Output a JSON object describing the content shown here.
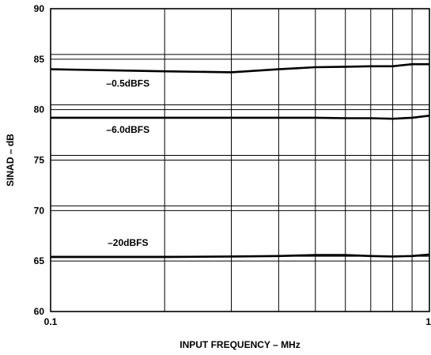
{
  "chart_data": {
    "type": "line",
    "xlabel": "INPUT FREQUENCY – MHz",
    "ylabel": "SINAD – dB",
    "x_scale": "log",
    "xlim": [
      0.1,
      1
    ],
    "ylim": [
      60,
      90
    ],
    "x_ticks": [
      {
        "value": 0.1,
        "label": "0.1"
      },
      {
        "value": 1,
        "label": "1"
      }
    ],
    "x_grid": [
      0.2,
      0.3,
      0.4,
      0.5,
      0.6,
      0.7,
      0.8,
      0.9
    ],
    "y_ticks": [
      60,
      65,
      70,
      75,
      80,
      85,
      90
    ],
    "grid": true,
    "series": [
      {
        "name": "–0.5dBFS",
        "x": [
          0.1,
          0.2,
          0.3,
          0.4,
          0.5,
          0.6,
          0.7,
          0.8,
          0.9,
          1
        ],
        "values": [
          84.0,
          83.8,
          83.7,
          84.0,
          84.2,
          84.25,
          84.3,
          84.3,
          84.5,
          84.5
        ]
      },
      {
        "name": "–6.0dBFS",
        "x": [
          0.1,
          0.2,
          0.3,
          0.4,
          0.5,
          0.6,
          0.7,
          0.8,
          0.9,
          1
        ],
        "values": [
          79.2,
          79.2,
          79.2,
          79.2,
          79.2,
          79.15,
          79.15,
          79.1,
          79.2,
          79.4
        ]
      },
      {
        "name": "–20dBFS",
        "x": [
          0.1,
          0.2,
          0.3,
          0.4,
          0.5,
          0.6,
          0.7,
          0.8,
          0.9,
          1
        ],
        "values": [
          65.4,
          65.4,
          65.45,
          65.5,
          65.6,
          65.6,
          65.5,
          65.45,
          65.5,
          65.65
        ]
      }
    ]
  }
}
